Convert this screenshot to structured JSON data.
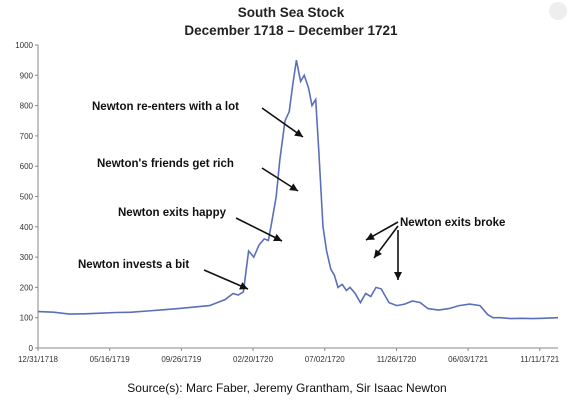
{
  "chart_data": {
    "type": "line",
    "title": "South Sea Stock",
    "subtitle": "December 1718 – December 1721",
    "xlabel": "",
    "ylabel": "",
    "ylim": [
      0,
      1000
    ],
    "y_ticks": [
      0,
      100,
      200,
      300,
      400,
      500,
      600,
      700,
      800,
      900,
      1000
    ],
    "x_ticks": [
      "12/31/1718",
      "05/16/1719",
      "09/26/1719",
      "02/20/1720",
      "07/02/1720",
      "11/26/1720",
      "06/03/1721",
      "11/11/1721"
    ],
    "grid": false,
    "line_color": "#5b6fb8",
    "series": [
      {
        "x": [
          0,
          0.03,
          0.06,
          0.09,
          0.12,
          0.15,
          0.18,
          0.21,
          0.24,
          0.27,
          0.3,
          0.33,
          0.36,
          0.375,
          0.385,
          0.395,
          0.405,
          0.415,
          0.425,
          0.435,
          0.443,
          0.45,
          0.458,
          0.465,
          0.475,
          0.483,
          0.49,
          0.497,
          0.505,
          0.512,
          0.52,
          0.527,
          0.534,
          0.54,
          0.548,
          0.555,
          0.563,
          0.57,
          0.577,
          0.585,
          0.593,
          0.6,
          0.61,
          0.62,
          0.63,
          0.64,
          0.65,
          0.66,
          0.675,
          0.69,
          0.705,
          0.72,
          0.735,
          0.75,
          0.77,
          0.79,
          0.81,
          0.83,
          0.85,
          0.865,
          0.875,
          0.89,
          0.91,
          0.93,
          0.95,
          0.97,
          1.0
        ],
        "values": [
          120,
          118,
          112,
          113,
          115,
          117,
          118,
          122,
          126,
          130,
          135,
          140,
          160,
          180,
          175,
          185,
          320,
          300,
          340,
          360,
          355,
          420,
          500,
          620,
          750,
          780,
          870,
          950,
          880,
          900,
          860,
          800,
          820,
          650,
          400,
          320,
          260,
          240,
          200,
          210,
          190,
          200,
          180,
          150,
          180,
          170,
          200,
          195,
          150,
          140,
          145,
          155,
          150,
          130,
          125,
          130,
          140,
          145,
          140,
          110,
          100,
          100,
          97,
          98,
          97,
          98,
          100
        ]
      }
    ],
    "annotations": [
      "Newton re-enters with a lot",
      "Newton's friends get rich",
      "Newton exits happy",
      "Newton invests a bit",
      "Newton exits broke"
    ],
    "source": "Source(s): Marc Faber, Jeremy Grantham, Sir Isaac Newton"
  }
}
